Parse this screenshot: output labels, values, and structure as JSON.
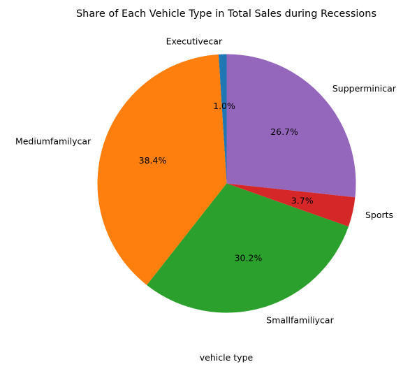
{
  "chart_data": {
    "type": "pie",
    "title": "Share of Each Vehicle Type in Total Sales during Recessions",
    "xlabel": "vehicle type",
    "start_angle_deg": 90,
    "direction": "counterclockwise",
    "slices": [
      {
        "label": "Executivecar",
        "value": 1.0,
        "pct_text": "1.0%",
        "color": "#1f77b4"
      },
      {
        "label": "Mediumfamilycar",
        "value": 38.4,
        "pct_text": "38.4%",
        "color": "#ff7f0e"
      },
      {
        "label": "Smallfamiliycar",
        "value": 30.2,
        "pct_text": "30.2%",
        "color": "#2ca02c"
      },
      {
        "label": "Sports",
        "value": 3.7,
        "pct_text": "3.7%",
        "color": "#d62728"
      },
      {
        "label": "Supperminicar",
        "value": 26.7,
        "pct_text": "26.7%",
        "color": "#9467bd"
      }
    ]
  }
}
